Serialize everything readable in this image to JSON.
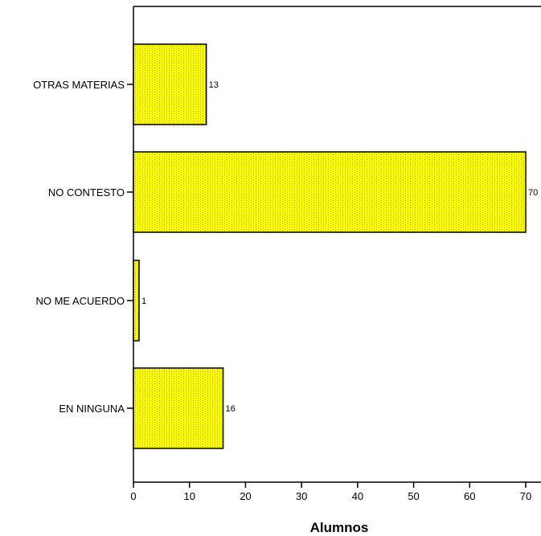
{
  "chart_data": {
    "type": "bar",
    "orientation": "horizontal",
    "categories": [
      "OTRAS MATERIAS",
      "NO CONTESTO",
      "NO ME ACUERDO",
      "EN NINGUNA"
    ],
    "values": [
      13,
      70,
      1,
      16
    ],
    "data_labels": [
      "13",
      "70",
      "1",
      "16"
    ],
    "xlabel": "Alumnos",
    "ylabel": "",
    "xlim": [
      0,
      73
    ],
    "x_ticks": [
      0,
      10,
      20,
      30,
      40,
      50,
      60,
      70
    ],
    "grid": false,
    "bar_color": "#ffff00",
    "bar_pattern_color": "#9a9a00"
  }
}
